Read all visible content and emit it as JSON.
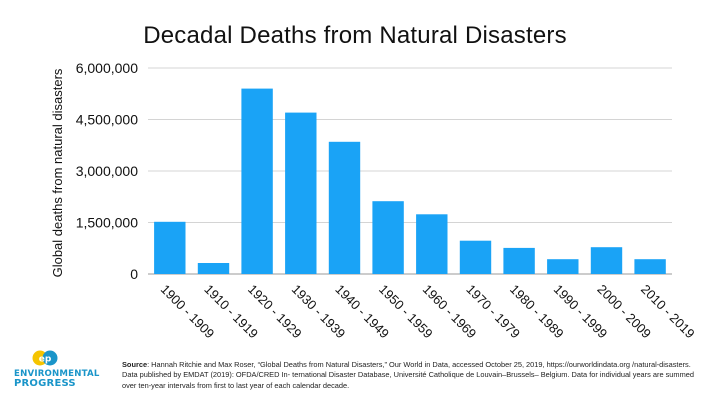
{
  "chart_data": {
    "type": "bar",
    "title": "Decadal Deaths from Natural Disasters",
    "ylabel": "Global deaths from natural disasters",
    "xlabel": "",
    "categories": [
      "1900 - 1909",
      "1910 - 1919",
      "1920 - 1929",
      "1930 - 1939",
      "1940 - 1949",
      "1950 - 1959",
      "1960 - 1969",
      "1970 - 1979",
      "1980 - 1989",
      "1990 - 1999",
      "2000 - 2009",
      "2010 - 2019"
    ],
    "values": [
      1520000,
      320000,
      5400000,
      4700000,
      3850000,
      2120000,
      1740000,
      970000,
      760000,
      430000,
      780000,
      430000
    ],
    "ylim": [
      0,
      6000000
    ],
    "yticks": [
      0,
      1500000,
      3000000,
      4500000,
      6000000
    ],
    "ytick_labels": [
      "0",
      "1,500,000",
      "3,000,000",
      "4,500,000",
      "6,000,000"
    ],
    "grid": true,
    "legend": "none",
    "bar_color": "#1aa3f6"
  },
  "source": {
    "label": "Source",
    "text": ": Hannah Ritchie and Max Roser, “Global Deaths from Natural Disasters,” Our World in Data, accessed October 25, 2019, https://ourworldindata.org /natural-disasters. Data published by EMDAT (2019): OFDA/CRED In- ternational Disaster Database, Université Catholique de Louvain–Brussels– Belgium. Data for individual years are summed over ten-year intervals from first to last year of each calendar decade."
  },
  "logo": {
    "line1": "ENVIRONMENTAL",
    "line2": "PROGRESS",
    "mark": "ep",
    "color_blue": "#1a95c9",
    "color_yellow": "#f5c400"
  }
}
